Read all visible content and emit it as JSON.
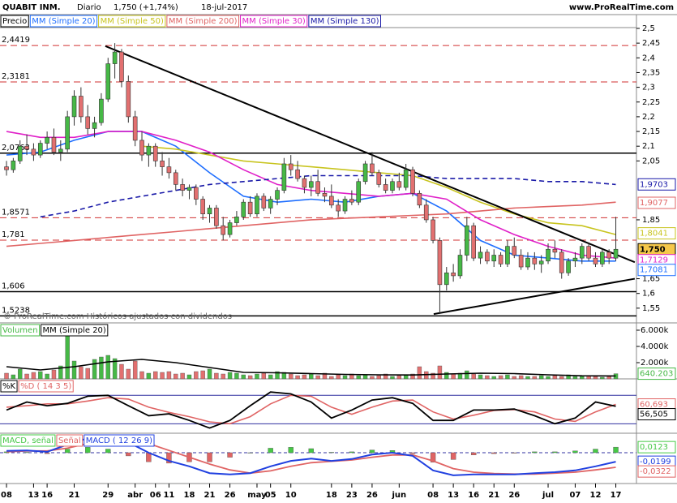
{
  "chart_data": {
    "type": "candlestick",
    "title": "QUABIT INM.",
    "period": "Diario",
    "last_price_label": "1,750 (+1,74%)",
    "date": "18-jul-2017",
    "source": "www.ProRealTime.com",
    "watermark": "© ProRealTime.com  Históricos ajustados con dividendos",
    "price_label": "Precio",
    "xlim": [
      -0.96,
      93.05
    ],
    "xticks": [
      {
        "value": 0,
        "label": "08"
      },
      {
        "value": 4,
        "label": "13"
      },
      {
        "value": 6,
        "label": "16"
      },
      {
        "value": 10,
        "label": "21"
      },
      {
        "value": 15,
        "label": "29"
      },
      {
        "value": 19,
        "label": "abr"
      },
      {
        "value": 22,
        "label": "06"
      },
      {
        "value": 24,
        "label": "11"
      },
      {
        "value": 27,
        "label": "18"
      },
      {
        "value": 30,
        "label": "21"
      },
      {
        "value": 33,
        "label": "26"
      },
      {
        "value": 37,
        "label": "may"
      },
      {
        "value": 39,
        "label": "05"
      },
      {
        "value": 42,
        "label": "10"
      },
      {
        "value": 48,
        "label": "18"
      },
      {
        "value": 51,
        "label": "23"
      },
      {
        "value": 54,
        "label": "26"
      },
      {
        "value": 58,
        "label": "jun"
      },
      {
        "value": 63,
        "label": "08"
      },
      {
        "value": 66,
        "label": "13"
      },
      {
        "value": 69,
        "label": "16"
      },
      {
        "value": 72,
        "label": "21"
      },
      {
        "value": 75,
        "label": "26"
      },
      {
        "value": 80,
        "label": "jul"
      },
      {
        "value": 84,
        "label": "07"
      },
      {
        "value": 87,
        "label": "12"
      },
      {
        "value": 90,
        "label": "17"
      }
    ],
    "ylim": [
      1.5,
      2.5
    ],
    "yticks": [
      {
        "value": 2.5,
        "label": "2,5"
      },
      {
        "value": 2.45,
        "label": "2,45"
      },
      {
        "value": 2.4,
        "label": "2,4"
      },
      {
        "value": 2.35,
        "label": "2,35"
      },
      {
        "value": 2.3,
        "label": "2,3"
      },
      {
        "value": 2.25,
        "label": "2,25"
      },
      {
        "value": 2.2,
        "label": "2,2"
      },
      {
        "value": 2.15,
        "label": "2,15"
      },
      {
        "value": 2.1,
        "label": "2,1"
      },
      {
        "value": 2.05,
        "label": "2,05"
      },
      {
        "value": 1.85,
        "label": "1,85"
      },
      {
        "value": 1.65,
        "label": "1,65"
      },
      {
        "value": 1.6,
        "label": "1,6"
      },
      {
        "value": 1.55,
        "label": "1,55"
      }
    ],
    "up_color": "#46b846",
    "down_color": "#e27070",
    "ohlc": [
      [
        2.03,
        2.05,
        2.0,
        2.02
      ],
      [
        2.02,
        2.06,
        2.01,
        2.05
      ],
      [
        2.05,
        2.12,
        2.04,
        2.1
      ],
      [
        2.1,
        2.14,
        2.07,
        2.09
      ],
      [
        2.09,
        2.11,
        2.05,
        2.07
      ],
      [
        2.07,
        2.12,
        2.06,
        2.11
      ],
      [
        2.11,
        2.15,
        2.09,
        2.13
      ],
      [
        2.13,
        2.16,
        2.07,
        2.08
      ],
      [
        2.08,
        2.12,
        2.05,
        2.09
      ],
      [
        2.09,
        2.22,
        2.08,
        2.2
      ],
      [
        2.2,
        2.29,
        2.17,
        2.27
      ],
      [
        2.27,
        2.3,
        2.18,
        2.2
      ],
      [
        2.2,
        2.24,
        2.14,
        2.16
      ],
      [
        2.16,
        2.2,
        2.13,
        2.18
      ],
      [
        2.18,
        2.28,
        2.17,
        2.26
      ],
      [
        2.26,
        2.4,
        2.25,
        2.38
      ],
      [
        2.38,
        2.45,
        2.33,
        2.42
      ],
      [
        2.42,
        2.43,
        2.3,
        2.32
      ],
      [
        2.32,
        2.34,
        2.18,
        2.2
      ],
      [
        2.2,
        2.22,
        2.1,
        2.12
      ],
      [
        2.12,
        2.15,
        2.05,
        2.07
      ],
      [
        2.07,
        2.11,
        2.03,
        2.1
      ],
      [
        2.1,
        2.11,
        2.03,
        2.05
      ],
      [
        2.05,
        2.08,
        2.0,
        2.03
      ],
      [
        2.03,
        2.06,
        1.99,
        2.01
      ],
      [
        2.01,
        2.02,
        1.95,
        1.97
      ],
      [
        1.97,
        1.99,
        1.93,
        1.95
      ],
      [
        1.95,
        1.97,
        1.92,
        1.96
      ],
      [
        1.96,
        1.97,
        1.9,
        1.92
      ],
      [
        1.92,
        1.93,
        1.85,
        1.87
      ],
      [
        1.87,
        1.9,
        1.84,
        1.89
      ],
      [
        1.89,
        1.9,
        1.82,
        1.83
      ],
      [
        1.83,
        1.86,
        1.78,
        1.8
      ],
      [
        1.8,
        1.85,
        1.79,
        1.84
      ],
      [
        1.84,
        1.88,
        1.83,
        1.86
      ],
      [
        1.86,
        1.92,
        1.85,
        1.91
      ],
      [
        1.91,
        1.93,
        1.86,
        1.87
      ],
      [
        1.87,
        1.94,
        1.86,
        1.93
      ],
      [
        1.93,
        1.94,
        1.88,
        1.89
      ],
      [
        1.89,
        1.93,
        1.87,
        1.92
      ],
      [
        1.92,
        1.96,
        1.9,
        1.95
      ],
      [
        1.95,
        2.06,
        1.94,
        2.04
      ],
      [
        2.04,
        2.07,
        2.0,
        2.02
      ],
      [
        2.02,
        2.05,
        1.98,
        1.99
      ],
      [
        1.99,
        2.0,
        1.94,
        1.96
      ],
      [
        1.96,
        2.0,
        1.93,
        1.98
      ],
      [
        1.98,
        2.02,
        1.93,
        1.94
      ],
      [
        1.94,
        1.96,
        1.91,
        1.93
      ],
      [
        1.93,
        1.97,
        1.89,
        1.9
      ],
      [
        1.9,
        1.92,
        1.86,
        1.88
      ],
      [
        1.88,
        1.93,
        1.87,
        1.92
      ],
      [
        1.92,
        1.95,
        1.9,
        1.91
      ],
      [
        1.91,
        1.99,
        1.9,
        1.98
      ],
      [
        1.98,
        2.05,
        1.97,
        2.04
      ],
      [
        2.04,
        2.08,
        2.0,
        2.01
      ],
      [
        2.01,
        2.02,
        1.96,
        1.97
      ],
      [
        1.97,
        1.99,
        1.94,
        1.95
      ],
      [
        1.95,
        1.99,
        1.94,
        1.98
      ],
      [
        1.98,
        2.01,
        1.95,
        1.96
      ],
      [
        1.96,
        2.04,
        1.95,
        2.02
      ],
      [
        2.02,
        2.03,
        1.93,
        1.94
      ],
      [
        1.94,
        1.95,
        1.89,
        1.9
      ],
      [
        1.9,
        1.92,
        1.84,
        1.85
      ],
      [
        1.85,
        1.86,
        1.77,
        1.78
      ],
      [
        1.78,
        1.79,
        1.53,
        1.63
      ],
      [
        1.63,
        1.69,
        1.61,
        1.67
      ],
      [
        1.67,
        1.7,
        1.64,
        1.66
      ],
      [
        1.66,
        1.75,
        1.65,
        1.73
      ],
      [
        1.73,
        1.86,
        1.71,
        1.83
      ],
      [
        1.83,
        1.84,
        1.71,
        1.72
      ],
      [
        1.72,
        1.76,
        1.7,
        1.74
      ],
      [
        1.74,
        1.75,
        1.7,
        1.71
      ],
      [
        1.71,
        1.75,
        1.69,
        1.73
      ],
      [
        1.73,
        1.74,
        1.69,
        1.7
      ],
      [
        1.7,
        1.78,
        1.69,
        1.76
      ],
      [
        1.76,
        1.79,
        1.72,
        1.73
      ],
      [
        1.73,
        1.75,
        1.68,
        1.69
      ],
      [
        1.69,
        1.74,
        1.68,
        1.72
      ],
      [
        1.72,
        1.74,
        1.68,
        1.7
      ],
      [
        1.7,
        1.73,
        1.67,
        1.71
      ],
      [
        1.71,
        1.77,
        1.7,
        1.75
      ],
      [
        1.75,
        1.78,
        1.72,
        1.74
      ],
      [
        1.74,
        1.75,
        1.65,
        1.67
      ],
      [
        1.67,
        1.72,
        1.66,
        1.71
      ],
      [
        1.71,
        1.74,
        1.69,
        1.72
      ],
      [
        1.72,
        1.77,
        1.7,
        1.76
      ],
      [
        1.76,
        1.77,
        1.71,
        1.72
      ],
      [
        1.72,
        1.74,
        1.69,
        1.7
      ],
      [
        1.7,
        1.75,
        1.69,
        1.74
      ],
      [
        1.74,
        1.75,
        1.7,
        1.72
      ],
      [
        1.72,
        1.86,
        1.71,
        1.75
      ]
    ],
    "last": {
      "value": 1.75,
      "label": "1,750"
    },
    "ma_x": [
      0,
      5,
      10,
      15,
      20,
      25,
      30,
      35,
      40,
      45,
      50,
      55,
      60,
      65,
      70,
      75,
      80,
      85,
      90
    ],
    "series": [
      {
        "name": "MM (Simple 20)",
        "color": "#1e6eff",
        "values": [
          2.07,
          2.08,
          2.12,
          2.15,
          2.15,
          2.1,
          2.01,
          1.93,
          1.91,
          1.92,
          1.91,
          1.93,
          1.94,
          1.88,
          1.78,
          1.73,
          1.72,
          1.71,
          1.71
        ],
        "last_value": 1.7081,
        "last_label": "1,7081"
      },
      {
        "name": "MM (Simple 50)",
        "color": "#c8c41e",
        "values": [
          null,
          null,
          null,
          null,
          2.1,
          2.09,
          2.07,
          2.05,
          2.04,
          2.03,
          2.02,
          2.01,
          2.0,
          1.96,
          1.91,
          1.87,
          1.84,
          1.83,
          1.8
        ],
        "last_value": 1.8041,
        "last_label": "1,8041"
      },
      {
        "name": "MM (Simple 200)",
        "color": "#e06464",
        "values": [
          1.76,
          1.77,
          1.78,
          1.79,
          1.8,
          1.81,
          1.82,
          1.83,
          1.84,
          1.85,
          1.855,
          1.86,
          1.865,
          1.87,
          1.88,
          1.89,
          1.895,
          1.9,
          1.91
        ],
        "last_value": 1.9077,
        "last_label": "1,9077"
      },
      {
        "name": "MM (Simple 30)",
        "color": "#e020c8",
        "values": [
          2.15,
          2.13,
          2.13,
          2.15,
          2.15,
          2.12,
          2.08,
          2.02,
          1.97,
          1.95,
          1.94,
          1.93,
          1.94,
          1.92,
          1.85,
          1.8,
          1.76,
          1.73,
          1.72
        ],
        "last_value": 1.7129,
        "last_label": "1,7129"
      },
      {
        "name": "MM (Simple 130)",
        "color": "#1a1aa8",
        "dashed": true,
        "values": [
          null,
          1.86,
          1.88,
          1.91,
          1.93,
          1.95,
          1.97,
          1.98,
          1.99,
          2.0,
          2.0,
          2.0,
          2.0,
          1.99,
          1.99,
          1.99,
          1.98,
          1.98,
          1.97
        ],
        "last_value": 1.9703,
        "last_label": "1,9703"
      }
    ],
    "levels": [
      {
        "value": 2.4419,
        "label": "2,4419",
        "color": "#d03030",
        "dashed": true
      },
      {
        "value": 2.3181,
        "label": "2,3181",
        "color": "#d03030",
        "dashed": true
      },
      {
        "value": 2.0763,
        "label": "2,0763",
        "color": "#000000",
        "dashed": false
      },
      {
        "value": 1.8571,
        "label": "1,8571",
        "color": "#d03030",
        "dashed": true
      },
      {
        "value": 1.781,
        "label": "1,781",
        "color": "#d03030",
        "dashed": true
      },
      {
        "value": 1.606,
        "label": "1,606",
        "color": "#000000",
        "dashed": false
      },
      {
        "value": 1.5238,
        "label": "1,5238",
        "color": "#000000",
        "dashed": false
      }
    ],
    "trendlines": [
      {
        "x": [
          14.6,
          92.8
        ],
        "y": [
          2.44,
          1.706
        ]
      },
      {
        "x": [
          63.1,
          92.8
        ],
        "y": [
          1.53,
          1.65
        ]
      }
    ],
    "volume": {
      "title": "Volumen",
      "ylim": [
        0,
        6900
      ],
      "yticks": [
        {
          "value": 6000,
          "label": "6.000k"
        },
        {
          "value": 4000,
          "label": "4.000k"
        },
        {
          "value": 2000,
          "label": "2.000k"
        }
      ],
      "values": [
        700,
        500,
        1200,
        600,
        800,
        900,
        600,
        1100,
        1600,
        6000,
        2200,
        1500,
        1300,
        2400,
        2700,
        2900,
        2500,
        1800,
        1200,
        2200,
        900,
        700,
        900,
        800,
        900,
        600,
        700,
        500,
        900,
        1000,
        1200,
        700,
        600,
        800,
        700,
        500,
        400,
        600,
        700,
        500,
        900,
        800,
        600,
        400,
        500,
        600,
        400,
        700,
        300,
        500,
        400,
        600,
        400,
        500,
        300,
        400,
        600,
        300,
        400,
        500,
        600,
        1500,
        900,
        700,
        1600,
        800,
        600,
        700,
        1000,
        600,
        500,
        400,
        300,
        400,
        500,
        300,
        400,
        300,
        300,
        400,
        300,
        400,
        300,
        500,
        300,
        300,
        400,
        300,
        200,
        300,
        640
      ],
      "ma_name": "MM (Simple 20)",
      "ma_color": "#000000",
      "ma_values": [
        1500,
        1100,
        1500,
        2100,
        2400,
        2000,
        1400,
        800,
        750,
        650,
        550,
        500,
        480,
        600,
        700,
        650,
        500,
        380,
        360
      ],
      "last_value": 640.203,
      "last_label": "640.203"
    },
    "osc_x": [
      0,
      3,
      6,
      9,
      12,
      15,
      18,
      21,
      24,
      27,
      30,
      33,
      36,
      39,
      42,
      45,
      48,
      51,
      54,
      57,
      60,
      63,
      66,
      69,
      72,
      75,
      78,
      81,
      84,
      87,
      90
    ],
    "stochastic": {
      "k_name": "%K",
      "d_name": "%D ( 14 3 5)",
      "k_color": "#000000",
      "d_color": "#e06464",
      "ylim": [
        0,
        113
      ],
      "bands": [
        20,
        80
      ],
      "k": [
        49,
        66,
        58,
        63,
        78,
        80,
        58,
        37,
        41,
        27,
        11,
        27,
        58,
        87,
        83,
        66,
        32,
        49,
        70,
        75,
        63,
        27,
        27,
        49,
        49,
        51,
        37,
        20,
        32,
        66,
        57
      ],
      "d": [
        55,
        58,
        62,
        62,
        68,
        75,
        72,
        55,
        44,
        35,
        24,
        20,
        35,
        62,
        80,
        78,
        55,
        40,
        55,
        68,
        70,
        45,
        30,
        38,
        48,
        50,
        45,
        30,
        25,
        45,
        61
      ],
      "k_last": {
        "value": 56.505,
        "label": "56,505"
      },
      "d_last": {
        "value": 60.693,
        "label": "60,693"
      }
    },
    "macd": {
      "hist_name": "MACD, señal",
      "signal_name": "Señal",
      "macd_name": "MACD ( 12 26 9)",
      "hist_color": "#46c846",
      "signal_color": "#e06464",
      "macd_color": "#2040e0",
      "ylim": [
        -0.068,
        0.043
      ],
      "histogram": [
        0.002,
        0.001,
        -0.002,
        0.008,
        0.012,
        0.008,
        -0.007,
        -0.02,
        -0.023,
        -0.02,
        -0.02,
        -0.01,
        0,
        0.01,
        0.012,
        0.009,
        0.001,
        0.002,
        0.006,
        0.005,
        -0.002,
        -0.021,
        -0.015,
        -0.005,
        -0.002,
        -0.001,
        0.002,
        0.002,
        0.004,
        0.008,
        0.0123
      ],
      "macd": [
        0.004,
        0.005,
        0.002,
        0.018,
        0.032,
        0.036,
        0.023,
        0,
        -0.018,
        -0.03,
        -0.045,
        -0.048,
        -0.045,
        -0.03,
        -0.018,
        -0.013,
        -0.018,
        -0.014,
        -0.004,
        0,
        -0.007,
        -0.039,
        -0.05,
        -0.048,
        -0.048,
        -0.048,
        -0.045,
        -0.043,
        -0.039,
        -0.03,
        -0.0199
      ],
      "signal": [
        0.002,
        0.004,
        0.004,
        0.01,
        0.02,
        0.028,
        0.03,
        0.02,
        0.005,
        -0.01,
        -0.025,
        -0.038,
        -0.045,
        -0.04,
        -0.03,
        -0.022,
        -0.019,
        -0.016,
        -0.01,
        -0.005,
        -0.005,
        -0.018,
        -0.035,
        -0.043,
        -0.046,
        -0.047,
        -0.047,
        -0.045,
        -0.043,
        -0.038,
        -0.0322
      ],
      "hist_last": {
        "value": 0.0123,
        "label": "0,0123"
      },
      "macd_last": {
        "value": -0.0199,
        "label": "-0,0199"
      },
      "signal_last": {
        "value": -0.0322,
        "label": "-0,0322"
      }
    }
  }
}
